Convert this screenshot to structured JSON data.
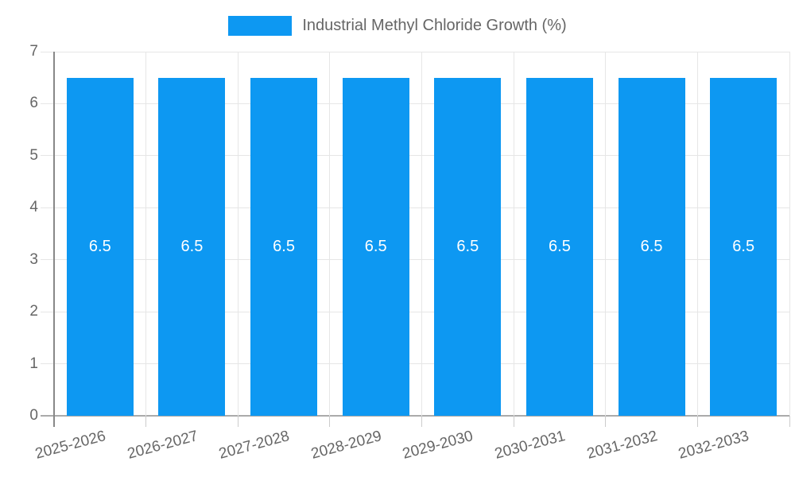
{
  "chart_data": {
    "type": "bar",
    "legend_label": "Industrial Methyl Chloride Growth (%)",
    "legend_position": "top",
    "categories": [
      "2025-2026",
      "2026-2027",
      "2027-2028",
      "2028-2029",
      "2029-2030",
      "2030-2031",
      "2031-2032",
      "2032-2033"
    ],
    "series": [
      {
        "name": "Industrial Methyl Chloride Growth (%)",
        "values": [
          6.5,
          6.5,
          6.5,
          6.5,
          6.5,
          6.5,
          6.5,
          6.5
        ],
        "labels": [
          "6.5",
          "6.5",
          "6.5",
          "6.5",
          "6.5",
          "6.5",
          "6.5",
          "6.5"
        ]
      }
    ],
    "xlabel": "",
    "ylabel": "",
    "ylim": [
      0,
      7
    ],
    "y_ticks": [
      0,
      1,
      2,
      3,
      4,
      5,
      6,
      7
    ],
    "grid": true,
    "x_label_rotation_deg": -15,
    "colors": {
      "bar": "#0d98f2",
      "gridline": "#e6e6e6",
      "axis_line": "#888888",
      "baseline": "#aaaaaa",
      "tick_mark": "#cccccc",
      "tick_text": "#666666",
      "legend_text": "#666666",
      "bar_label_text": "#ffffff",
      "background": "#ffffff"
    }
  }
}
